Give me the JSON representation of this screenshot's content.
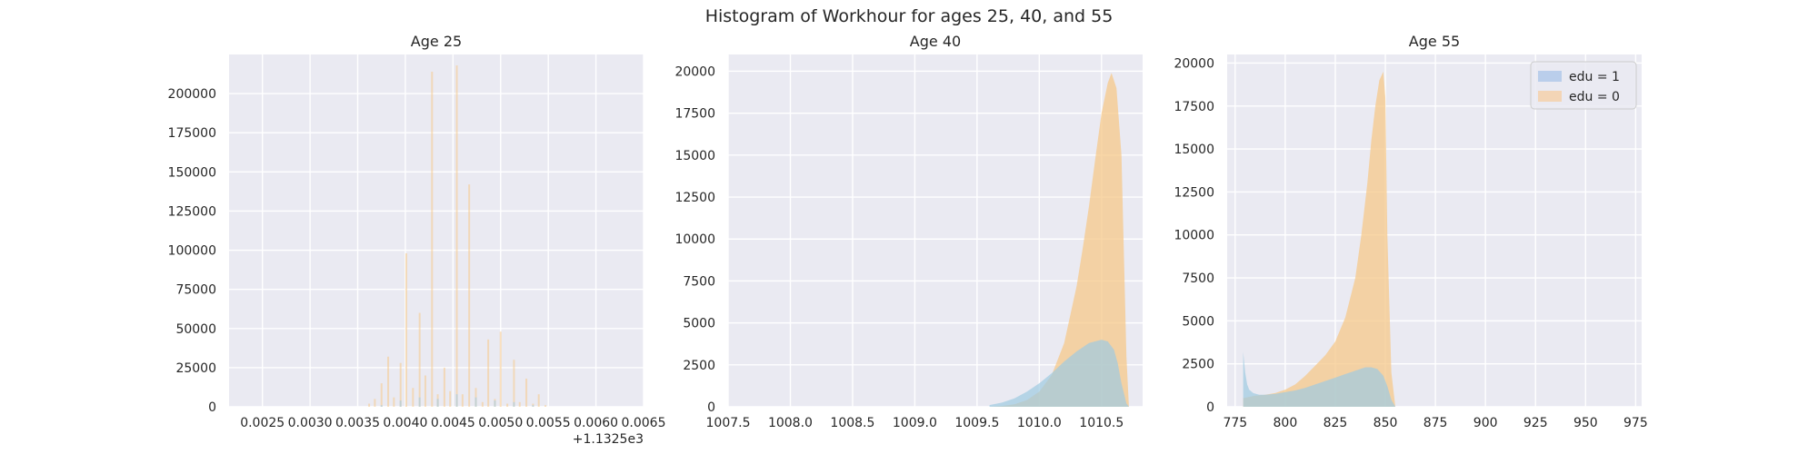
{
  "figure": {
    "suptitle": "Histogram of Workhour for ages 25, 40, and 55"
  },
  "legend": {
    "placement": "top-right",
    "entries": [
      {
        "label": "edu = 1",
        "color": "#aec7e8"
      },
      {
        "label": "edu = 0",
        "color": "#f5cfa6"
      }
    ]
  },
  "colors": {
    "background": "#eaeaf2",
    "grid": "#ffffff",
    "edu1": "#9ecae1",
    "edu0": "#f6c88a",
    "overlap": "#a5b596"
  },
  "chart_data": [
    {
      "type": "bar",
      "title": "Age 25",
      "xlabel": "",
      "ylabel": "",
      "xlim": [
        0.00215,
        0.0065
      ],
      "ylim": [
        0,
        225000
      ],
      "offset_label": "+1.1325e3",
      "grid": true,
      "xticks": [
        0.0025,
        0.003,
        0.0035,
        0.004,
        0.0045,
        0.005,
        0.0055,
        0.006,
        0.0065
      ],
      "xtick_labels": [
        "0.0025",
        "0.0030",
        "0.0035",
        "0.0040",
        "0.0045",
        "0.0050",
        "0.0055",
        "0.0060",
        "0.0065"
      ],
      "yticks": [
        0,
        25000,
        50000,
        75000,
        100000,
        125000,
        150000,
        175000,
        200000
      ],
      "ytick_labels": [
        "0",
        "25000",
        "50000",
        "75000",
        "100000",
        "125000",
        "150000",
        "175000",
        "200000"
      ],
      "series": [
        {
          "name": "edu = 0",
          "x": [
            0.00362,
            0.00368,
            0.00375,
            0.00382,
            0.00388,
            0.00395,
            0.00401,
            0.00408,
            0.00415,
            0.00421,
            0.00428,
            0.00434,
            0.00441,
            0.00447,
            0.00454,
            0.0046,
            0.00467,
            0.00474,
            0.00481,
            0.00487,
            0.00494,
            0.005,
            0.00507,
            0.00514,
            0.0052,
            0.00527,
            0.00534,
            0.0054,
            0.00547
          ],
          "values": [
            2000,
            5000,
            15000,
            32000,
            6000,
            28000,
            98000,
            12000,
            60000,
            20000,
            214000,
            8000,
            25000,
            10000,
            218000,
            8000,
            142000,
            12000,
            3000,
            43000,
            5000,
            48000,
            2000,
            30000,
            3000,
            18000,
            2000,
            8000,
            1000
          ]
        },
        {
          "name": "edu = 1",
          "x": [
            0.00375,
            0.00395,
            0.00415,
            0.00434,
            0.00454,
            0.00474,
            0.00494,
            0.00514,
            0.00534
          ],
          "values": [
            1000,
            4000,
            6000,
            5000,
            8000,
            6000,
            4000,
            3000,
            1000
          ]
        }
      ]
    },
    {
      "type": "area",
      "title": "Age 40",
      "xlabel": "",
      "ylabel": "",
      "xlim": [
        1007.5,
        1010.83
      ],
      "ylim": [
        0,
        21000
      ],
      "grid": true,
      "xticks": [
        1007.5,
        1008.0,
        1008.5,
        1009.0,
        1009.5,
        1010.0,
        1010.5
      ],
      "xtick_labels": [
        "1007.5",
        "1008.0",
        "1008.5",
        "1009.0",
        "1009.5",
        "1010.0",
        "1010.5"
      ],
      "yticks": [
        0,
        2500,
        5000,
        7500,
        10000,
        12500,
        15000,
        17500,
        20000
      ],
      "ytick_labels": [
        "0",
        "2500",
        "5000",
        "7500",
        "10000",
        "12500",
        "15000",
        "17500",
        "20000"
      ],
      "series": [
        {
          "name": "edu = 0",
          "x": [
            1009.6,
            1009.7,
            1009.8,
            1009.9,
            1010.0,
            1010.1,
            1010.2,
            1010.3,
            1010.35,
            1010.4,
            1010.45,
            1010.5,
            1010.55,
            1010.58,
            1010.62,
            1010.66,
            1010.7,
            1010.72
          ],
          "values": [
            0,
            50,
            150,
            400,
            900,
            1900,
            3800,
            7200,
            9500,
            12000,
            14800,
            17500,
            19300,
            19900,
            19000,
            15000,
            3000,
            0
          ]
        },
        {
          "name": "edu = 1",
          "x": [
            1009.6,
            1009.7,
            1009.8,
            1009.9,
            1010.0,
            1010.1,
            1010.2,
            1010.3,
            1010.4,
            1010.5,
            1010.55,
            1010.6,
            1010.63,
            1010.66,
            1010.7,
            1010.72
          ],
          "values": [
            100,
            250,
            500,
            900,
            1400,
            2000,
            2700,
            3300,
            3800,
            4000,
            3900,
            3400,
            2600,
            1400,
            200,
            0
          ]
        }
      ]
    },
    {
      "type": "area",
      "title": "Age 55",
      "xlabel": "",
      "ylabel": "",
      "xlim": [
        771,
        978
      ],
      "ylim": [
        0,
        20500
      ],
      "grid": true,
      "legend_placement": "top-right",
      "xticks": [
        775,
        800,
        825,
        850,
        875,
        900,
        925,
        950,
        975
      ],
      "xtick_labels": [
        "775",
        "800",
        "825",
        "850",
        "875",
        "900",
        "925",
        "950",
        "975"
      ],
      "yticks": [
        0,
        2500,
        5000,
        7500,
        10000,
        12500,
        15000,
        17500,
        20000
      ],
      "ytick_labels": [
        "0",
        "2500",
        "5000",
        "7500",
        "10000",
        "12500",
        "15000",
        "17500",
        "20000"
      ],
      "series": [
        {
          "name": "edu = 0",
          "x": [
            779,
            785,
            790,
            795,
            800,
            805,
            810,
            815,
            820,
            825,
            830,
            835,
            838,
            841,
            843,
            845,
            847,
            849,
            850,
            851,
            853,
            855
          ],
          "values": [
            500,
            650,
            700,
            800,
            1000,
            1300,
            1800,
            2400,
            3000,
            3800,
            5200,
            7500,
            10000,
            13000,
            15500,
            17500,
            19000,
            19500,
            18000,
            10000,
            2000,
            0
          ]
        },
        {
          "name": "edu = 1",
          "x": [
            779,
            780,
            781,
            782,
            784,
            787,
            790,
            795,
            800,
            805,
            810,
            815,
            820,
            825,
            830,
            835,
            840,
            843,
            846,
            849,
            851,
            853,
            855
          ],
          "values": [
            3200,
            2000,
            1300,
            1000,
            800,
            700,
            700,
            750,
            850,
            950,
            1100,
            1300,
            1500,
            1700,
            1900,
            2100,
            2300,
            2300,
            2200,
            1800,
            1200,
            400,
            0
          ]
        }
      ]
    }
  ]
}
